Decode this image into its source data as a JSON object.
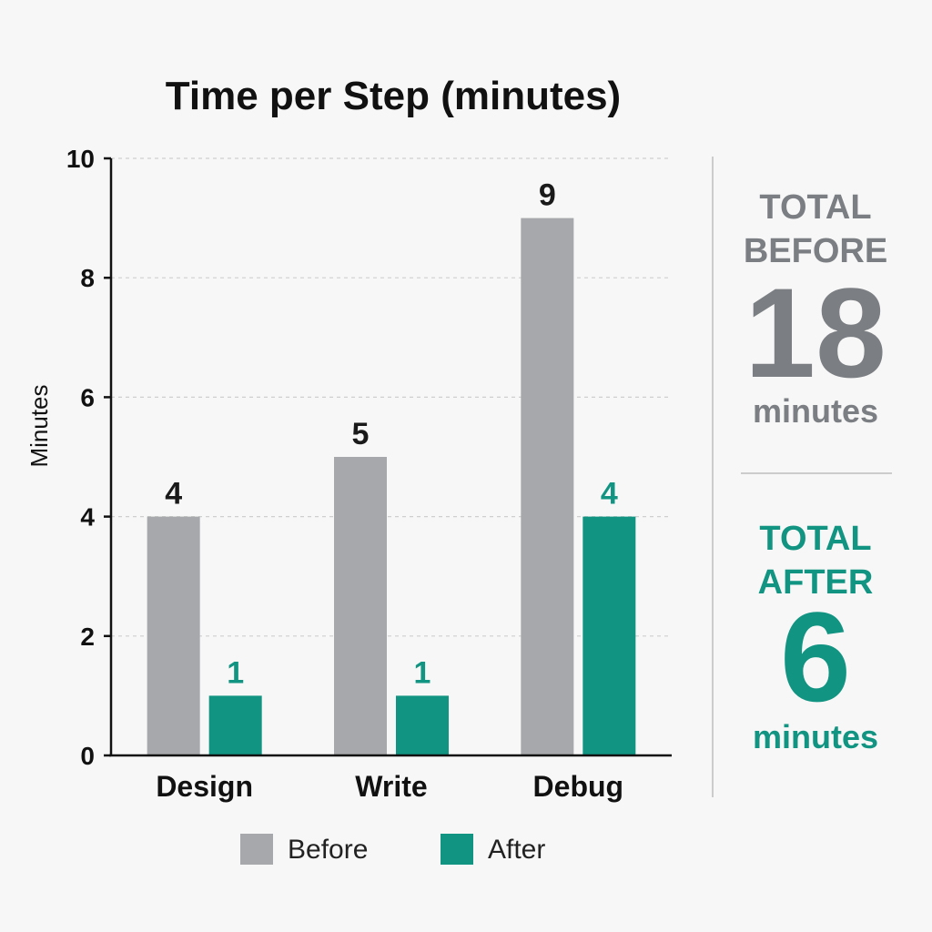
{
  "chart_data": {
    "type": "bar",
    "title": "Time per Step (minutes)",
    "ylabel": "Minutes",
    "xlabel": "",
    "ylim": [
      0,
      10
    ],
    "yticks": [
      0,
      2,
      4,
      6,
      8,
      10
    ],
    "grid": true,
    "legend_position": "bottom",
    "categories": [
      "Design",
      "Write",
      "Debug"
    ],
    "series": [
      {
        "name": "Before",
        "values": [
          4,
          5,
          9
        ],
        "color": "#a6a8ab",
        "label_color": "#1a1a1a"
      },
      {
        "name": "After",
        "values": [
          1,
          1,
          4
        ],
        "color": "#119482",
        "label_color": "#119482"
      }
    ]
  },
  "summary": {
    "before": {
      "line1": "TOTAL",
      "line2": "BEFORE",
      "value": "18",
      "unit": "minutes",
      "color": "#7b7e82"
    },
    "after": {
      "line1": "TOTAL",
      "line2": "AFTER",
      "value": "6",
      "unit": "minutes",
      "color": "#119482"
    }
  }
}
